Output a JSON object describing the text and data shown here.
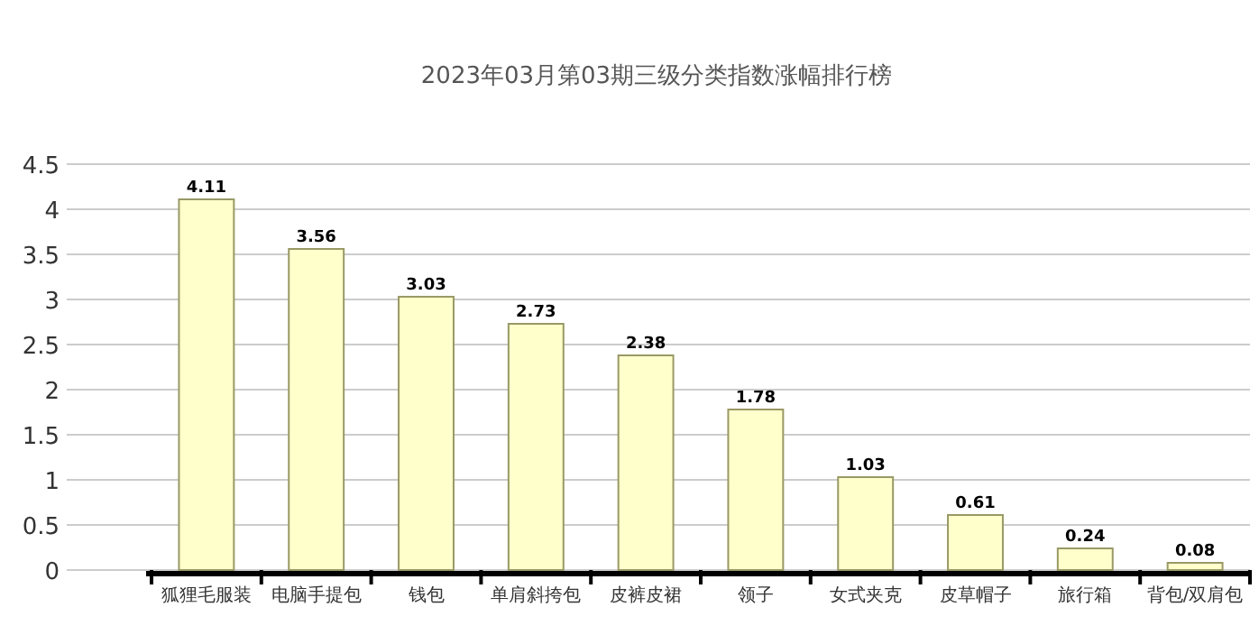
{
  "chart_data": {
    "type": "bar",
    "title": "2023年03月第03期三级分类指数涨幅排行榜",
    "categories": [
      "狐狸毛服装",
      "电脑手提包",
      "钱包",
      "单肩斜挎包",
      "皮裤皮裙",
      "领子",
      "女式夹克",
      "皮草帽子",
      "旅行箱",
      "背包/双肩包"
    ],
    "values": [
      4.11,
      3.56,
      3.03,
      2.73,
      2.38,
      1.78,
      1.03,
      0.61,
      0.24,
      0.08
    ],
    "color": "#ffffcc",
    "ylim": [
      0,
      4.5
    ],
    "yticks": [
      0,
      0.5,
      1,
      1.5,
      2,
      2.5,
      3,
      3.5,
      4,
      4.5
    ],
    "grid": "y",
    "data_labels": true
  }
}
